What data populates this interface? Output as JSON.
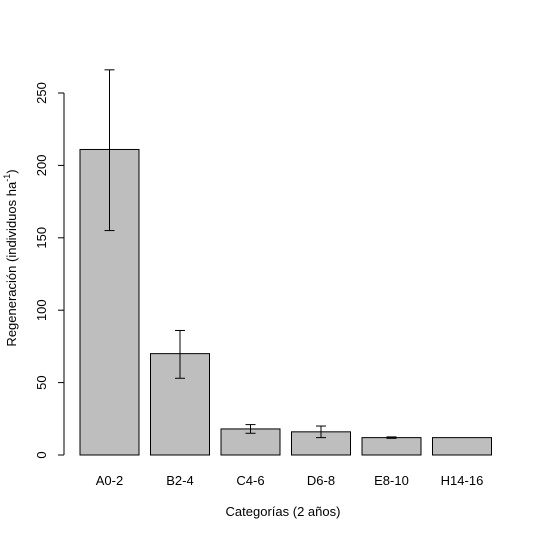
{
  "chart_data": {
    "type": "bar",
    "categories": [
      "A0-2",
      "B2-4",
      "C4-6",
      "D6-8",
      "E8-10",
      "H14-16"
    ],
    "values": [
      211,
      70,
      18,
      16,
      12,
      12
    ],
    "error_low": [
      155,
      53,
      15,
      12,
      11.5,
      12
    ],
    "error_high": [
      266,
      86,
      21,
      20,
      12.5,
      12
    ],
    "xlabel": "Categorías (2 años)",
    "ylabel_main": "Regeneración (individuos ha",
    "ylabel_sup": "-1",
    "ylabel_close": ")",
    "ylim": [
      0,
      270
    ],
    "yticks": [
      0,
      50,
      100,
      150,
      200,
      250
    ],
    "grid": false,
    "colors": {
      "bar_fill": "#bebebe",
      "bar_stroke": "#000000"
    }
  }
}
